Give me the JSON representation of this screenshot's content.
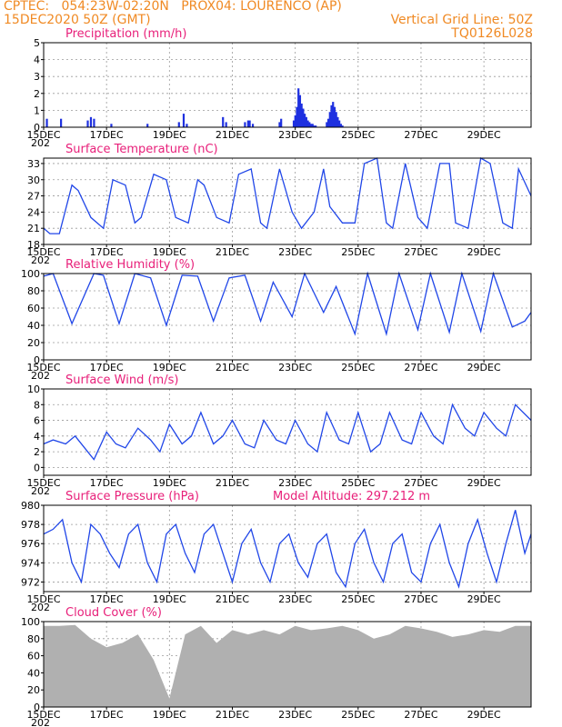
{
  "header": {
    "left_line1": "CPTEC:   054:23W-02:20N   PROX04: LOURENCO (AP)",
    "left_line2": "15DEC2020 50Z (GMT)",
    "right_line1": "Vertical Grid Line: 50Z",
    "right_line2": "TQ0126L028"
  },
  "x_axis": {
    "tick_labels": [
      "15DEC",
      "17DEC",
      "19DEC",
      "21DEC",
      "23DEC",
      "25DEC",
      "27DEC",
      "29DEC"
    ],
    "sub_label": "202"
  },
  "panels": [
    {
      "key": "precip",
      "title": "Precipitation (mm/h)",
      "extra": "",
      "yticks": [
        "0",
        "1",
        "2",
        "3",
        "4",
        "5"
      ],
      "ymin": 0,
      "ymax": 5
    },
    {
      "key": "temp",
      "title": "Surface Temperature (nC)",
      "extra": "",
      "yticks": [
        "18",
        "21",
        "24",
        "27",
        "30",
        "33"
      ],
      "ymin": 18,
      "ymax": 34
    },
    {
      "key": "rh",
      "title": "Relative Humidity (%)",
      "extra": "",
      "yticks": [
        "0",
        "20",
        "40",
        "60",
        "80",
        "100"
      ],
      "ymin": 0,
      "ymax": 100
    },
    {
      "key": "wind",
      "title": "Surface Wind (m/s)",
      "extra": "",
      "yticks": [
        "0",
        "2",
        "4",
        "6",
        "8",
        "10"
      ],
      "ymin": -1,
      "ymax": 10
    },
    {
      "key": "pres",
      "title": "Surface Pressure (hPa)",
      "extra": "Model Altitude: 297.212 m",
      "yticks": [
        "972",
        "974",
        "976",
        "978",
        "980"
      ],
      "ymin": 971,
      "ymax": 980
    },
    {
      "key": "cloud",
      "title": "Cloud Cover (%)",
      "extra": "",
      "yticks": [
        "0",
        "20",
        "40",
        "60",
        "80",
        "100"
      ],
      "ymin": 0,
      "ymax": 100
    }
  ],
  "colors": {
    "series": "#2046e8",
    "bars": "#1e30e0",
    "cloud": "#b0b0b0",
    "title": "#e8207a",
    "header": "#f08a24"
  },
  "chart_data": [
    {
      "type": "bar",
      "title": "Precipitation (mm/h)",
      "xlim": [
        0,
        15.5
      ],
      "ylim": [
        0,
        5
      ],
      "grid": true,
      "x": [
        0.1,
        0.55,
        1.4,
        1.5,
        1.6,
        2.15,
        3.3,
        4.3,
        4.45,
        4.55,
        5.7,
        5.8,
        6.4,
        6.5,
        6.55,
        6.65,
        7.5,
        7.55,
        7.95,
        8.0,
        8.05,
        8.1,
        8.15,
        8.2,
        8.25,
        8.3,
        8.35,
        8.4,
        8.45,
        8.5,
        8.55,
        8.6,
        8.65,
        9.0,
        9.05,
        9.1,
        9.15,
        9.2,
        9.25,
        9.3,
        9.35,
        9.4,
        9.45,
        9.5
      ],
      "values": [
        0.5,
        0.5,
        0.4,
        0.6,
        0.5,
        0.2,
        0.2,
        0.3,
        0.8,
        0.2,
        0.6,
        0.3,
        0.3,
        0.4,
        0.4,
        0.2,
        0.3,
        0.5,
        0.4,
        0.7,
        1.2,
        2.3,
        1.9,
        1.4,
        1.1,
        0.8,
        0.6,
        0.4,
        0.3,
        0.2,
        0.2,
        0.1,
        0.1,
        0.3,
        0.5,
        0.9,
        1.3,
        1.5,
        1.2,
        0.9,
        0.6,
        0.4,
        0.2,
        0.1
      ]
    },
    {
      "type": "line",
      "title": "Surface Temperature (nC)",
      "xlim": [
        0,
        15.5
      ],
      "ylim": [
        18,
        34
      ],
      "grid": true,
      "x": [
        0,
        0.2,
        0.5,
        0.9,
        1.1,
        1.5,
        1.9,
        2.2,
        2.6,
        2.9,
        3.1,
        3.5,
        3.9,
        4.2,
        4.6,
        4.9,
        5.1,
        5.5,
        5.9,
        6.2,
        6.6,
        6.9,
        7.1,
        7.5,
        7.9,
        8.2,
        8.6,
        8.9,
        9.1,
        9.5,
        9.9,
        10.2,
        10.6,
        10.9,
        11.1,
        11.5,
        11.9,
        12.2,
        12.6,
        12.9,
        13.1,
        13.5,
        13.9,
        14.2,
        14.6,
        14.9,
        15.1,
        15.5
      ],
      "y": [
        21,
        20,
        20,
        29,
        28,
        23,
        21,
        30,
        29,
        22,
        23,
        31,
        30,
        23,
        22,
        30,
        29,
        23,
        22,
        31,
        32,
        22,
        21,
        32,
        24,
        21,
        24,
        32,
        25,
        22,
        22,
        33,
        34,
        22,
        21,
        33,
        23,
        21,
        33,
        33,
        22,
        21,
        34,
        33,
        22,
        21,
        32,
        27
      ]
    },
    {
      "type": "line",
      "title": "Relative Humidity (%)",
      "xlim": [
        0,
        15.5
      ],
      "ylim": [
        0,
        100
      ],
      "grid": true,
      "x": [
        0,
        0.3,
        0.9,
        1.6,
        1.9,
        2.4,
        2.9,
        3.4,
        3.9,
        4.4,
        4.9,
        5.4,
        5.9,
        6.4,
        6.9,
        7.3,
        7.9,
        8.3,
        8.9,
        9.3,
        9.9,
        10.3,
        10.9,
        11.3,
        11.9,
        12.3,
        12.9,
        13.3,
        13.9,
        14.3,
        14.9,
        15.3,
        15.5
      ],
      "y": [
        97,
        100,
        42,
        100,
        98,
        42,
        100,
        95,
        40,
        98,
        97,
        45,
        95,
        98,
        45,
        90,
        50,
        100,
        55,
        85,
        30,
        100,
        30,
        100,
        35,
        100,
        32,
        100,
        33,
        100,
        38,
        45,
        55
      ]
    },
    {
      "type": "line",
      "title": "Surface Wind (m/s)",
      "xlim": [
        0,
        15.5
      ],
      "ylim": [
        -1,
        10
      ],
      "grid": true,
      "x": [
        0,
        0.3,
        0.7,
        1.0,
        1.3,
        1.6,
        2.0,
        2.3,
        2.6,
        3.0,
        3.4,
        3.7,
        4.0,
        4.4,
        4.7,
        5.0,
        5.4,
        5.7,
        6.0,
        6.4,
        6.7,
        7.0,
        7.4,
        7.7,
        8.0,
        8.4,
        8.7,
        9.0,
        9.4,
        9.7,
        10.0,
        10.4,
        10.7,
        11.0,
        11.4,
        11.7,
        12.0,
        12.4,
        12.7,
        13.0,
        13.4,
        13.7,
        14.0,
        14.4,
        14.7,
        15.0,
        15.5
      ],
      "y": [
        3,
        3.5,
        3,
        4,
        2.5,
        1,
        4.5,
        3,
        2.5,
        5,
        3.5,
        2,
        5.5,
        3,
        4,
        7,
        3,
        4,
        6,
        3,
        2.5,
        6,
        3.5,
        3,
        6,
        3,
        2,
        7,
        3.5,
        3,
        7,
        2,
        3,
        7,
        3.5,
        3,
        7,
        4,
        3,
        8,
        5,
        4,
        7,
        5,
        4,
        8,
        6
      ]
    },
    {
      "type": "line",
      "title": "Surface Pressure (hPa)",
      "xlim": [
        0,
        15.5
      ],
      "ylim": [
        971,
        980
      ],
      "grid": true,
      "x": [
        0,
        0.3,
        0.6,
        0.9,
        1.2,
        1.5,
        1.8,
        2.1,
        2.4,
        2.7,
        3.0,
        3.3,
        3.6,
        3.9,
        4.2,
        4.5,
        4.8,
        5.1,
        5.4,
        5.7,
        6.0,
        6.3,
        6.6,
        6.9,
        7.2,
        7.5,
        7.8,
        8.1,
        8.4,
        8.7,
        9.0,
        9.3,
        9.6,
        9.9,
        10.2,
        10.5,
        10.8,
        11.1,
        11.4,
        11.7,
        12.0,
        12.3,
        12.6,
        12.9,
        13.2,
        13.5,
        13.8,
        14.1,
        14.4,
        14.7,
        15.0,
        15.3,
        15.5
      ],
      "y": [
        977,
        977.5,
        978.5,
        974,
        972,
        978,
        977,
        975,
        973.5,
        977,
        978,
        974,
        972,
        977,
        978,
        975,
        973,
        977,
        978,
        975,
        972,
        976,
        977.5,
        974,
        972,
        976,
        977,
        974,
        972.5,
        976,
        977,
        973,
        971.5,
        976,
        977.5,
        974,
        972,
        976,
        977,
        973,
        972,
        976,
        978,
        974,
        971.5,
        976,
        978.5,
        975,
        972,
        976,
        979.5,
        975,
        977
      ]
    },
    {
      "type": "area",
      "title": "Cloud Cover (%)",
      "xlim": [
        0,
        15.5
      ],
      "ylim": [
        0,
        100
      ],
      "grid": true,
      "x": [
        0,
        0.5,
        1,
        1.5,
        2,
        2.5,
        3,
        3.5,
        4,
        4.5,
        5,
        5.5,
        6,
        6.5,
        7,
        7.5,
        8,
        8.5,
        9,
        9.5,
        10,
        10.5,
        11,
        11.5,
        12,
        12.5,
        13,
        13.5,
        14,
        14.5,
        15,
        15.5
      ],
      "y": [
        95,
        95,
        96,
        80,
        70,
        75,
        85,
        55,
        10,
        85,
        95,
        75,
        90,
        85,
        90,
        85,
        95,
        90,
        92,
        95,
        90,
        80,
        85,
        95,
        92,
        88,
        82,
        85,
        90,
        88,
        95,
        95
      ]
    }
  ]
}
